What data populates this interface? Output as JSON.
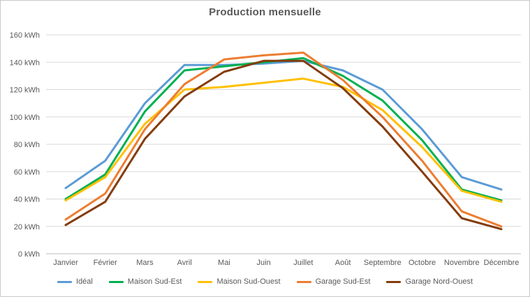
{
  "title": "Production mensuelle",
  "chart_data": {
    "type": "line",
    "title": "Production mensuelle",
    "xlabel": "",
    "ylabel": "",
    "ylim": [
      0,
      160
    ],
    "grid": true,
    "legend_position": "bottom",
    "unit": "kWh",
    "categories": [
      "Janvier",
      "Février",
      "Mars",
      "Avril",
      "Mai",
      "Juin",
      "Juillet",
      "Août",
      "Septembre",
      "Octobre",
      "Novembre",
      "Décembre"
    ],
    "y_ticks": [
      {
        "value": 0,
        "label": "0 kWh"
      },
      {
        "value": 20,
        "label": "20 kWh"
      },
      {
        "value": 40,
        "label": "40 kWh"
      },
      {
        "value": 60,
        "label": "60 kWh"
      },
      {
        "value": 80,
        "label": "80 kWh"
      },
      {
        "value": 100,
        "label": "100 kWh"
      },
      {
        "value": 120,
        "label": "120 kWh"
      },
      {
        "value": 140,
        "label": "140 kWh"
      },
      {
        "value": 160,
        "label": "160 kWh"
      }
    ],
    "series": [
      {
        "name": "Idéal",
        "color": "#5B9BD5",
        "values": [
          48,
          68,
          110,
          138,
          138,
          139,
          141,
          134,
          120,
          91,
          56,
          47
        ]
      },
      {
        "name": "Maison Sud-Est",
        "color": "#00B050",
        "values": [
          40,
          58,
          104,
          134,
          137,
          140,
          143,
          130,
          112,
          83,
          47,
          39
        ]
      },
      {
        "name": "Maison Sud-Ouest",
        "color": "#FFC000",
        "values": [
          39,
          56,
          95,
          120,
          122,
          125,
          128,
          122,
          105,
          78,
          46,
          38
        ]
      },
      {
        "name": "Garage Sud-Est",
        "color": "#ED7D31",
        "values": [
          25,
          44,
          91,
          124,
          142,
          145,
          147,
          127,
          100,
          68,
          31,
          20
        ]
      },
      {
        "name": "Garage Nord-Ouest",
        "color": "#843C0C",
        "values": [
          21,
          38,
          84,
          115,
          133,
          141,
          141,
          121,
          93,
          60,
          26,
          18
        ]
      }
    ],
    "colors": {
      "grid": "#D9D9D9",
      "axis": "#BFBFBF",
      "text": "#595959",
      "title": "#595959",
      "background": "#FFFFFF"
    }
  }
}
